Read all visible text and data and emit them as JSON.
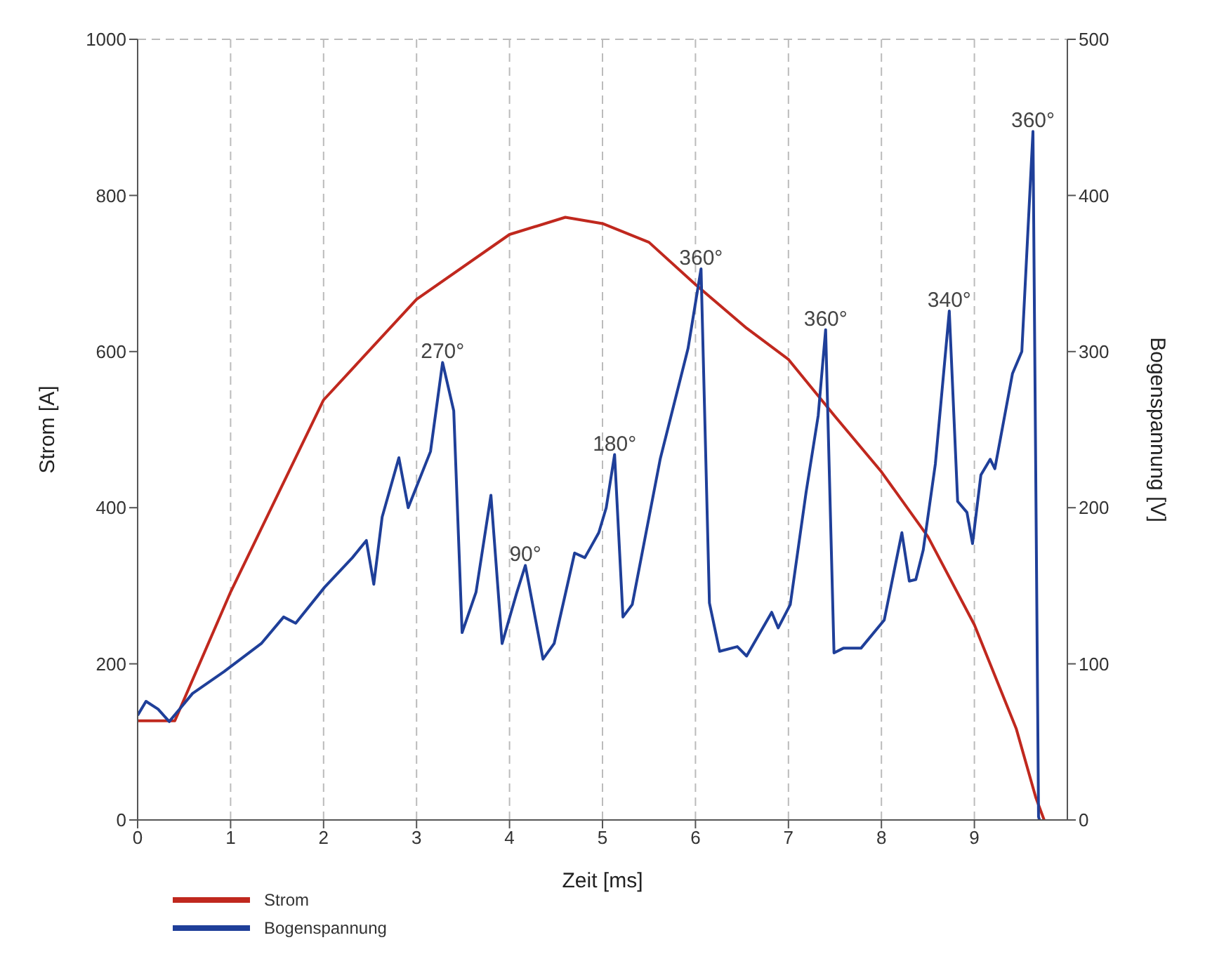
{
  "chart_data": {
    "type": "line",
    "xlabel": "Zeit [ms]",
    "ylabel": "Strom [A]",
    "y2label": "Bogenspannung [V]",
    "xlim": [
      0,
      10
    ],
    "xticks": [
      0,
      1,
      2,
      3,
      4,
      5,
      6,
      7,
      8,
      9
    ],
    "ylim": [
      0,
      1000
    ],
    "yticks": [
      0,
      200,
      400,
      600,
      800,
      1000
    ],
    "y2lim": [
      0,
      500
    ],
    "y2ticks": [
      0,
      100,
      200,
      300,
      400,
      500
    ],
    "grid": true,
    "legend": "bottom left",
    "line_style": "solid",
    "marker": "none",
    "series": [
      {
        "name": "Strom",
        "color": "#c0281e",
        "x": [
          0,
          0.4,
          1,
          2,
          3,
          4,
          4.6,
          5,
          5.5,
          6,
          6.55,
          7,
          7.5,
          8,
          8.5,
          9,
          9.45,
          9.66,
          9.75
        ],
        "values": [
          127,
          127,
          292,
          538,
          667,
          750,
          772,
          764,
          740,
          686,
          630,
          590,
          517,
          446,
          363,
          250,
          117,
          29,
          0
        ]
      },
      {
        "name": "Bogenspannung",
        "color": "#1f3f99",
        "axis": "y2",
        "x": [
          0,
          0.09,
          0.22,
          0.34,
          0.59,
          0.93,
          1.33,
          1.57,
          1.7,
          2.01,
          2.31,
          2.46,
          2.54,
          2.63,
          2.81,
          2.91,
          3.15,
          3.28,
          3.4,
          3.49,
          3.64,
          3.8,
          3.92,
          4.08,
          4.17,
          4.36,
          4.48,
          4.7,
          4.81,
          4.96,
          5.04,
          5.13,
          5.22,
          5.32,
          5.62,
          5.92,
          6.06,
          6.15,
          6.26,
          6.45,
          6.55,
          6.82,
          6.89,
          7.02,
          7.19,
          7.32,
          7.4,
          7.49,
          7.59,
          7.78,
          8.03,
          8.22,
          8.3,
          8.37,
          8.45,
          8.58,
          8.73,
          8.82,
          8.92,
          8.98,
          9.07,
          9.17,
          9.22,
          9.41,
          9.51,
          9.63,
          9.69,
          9.7
        ],
        "values": [
          67,
          76,
          71,
          63,
          81,
          95,
          113,
          130,
          126,
          149,
          168,
          179,
          151,
          194,
          232,
          200,
          236,
          293,
          262,
          120,
          146,
          208,
          113,
          146,
          163,
          103,
          113,
          171,
          168,
          184,
          200,
          234,
          130,
          138,
          231,
          302,
          353,
          139,
          108,
          111,
          105,
          133,
          123,
          138,
          210,
          259,
          314,
          107,
          110,
          110,
          128,
          184,
          153,
          154,
          173,
          228,
          326,
          204,
          197,
          177,
          221,
          231,
          225,
          286,
          300,
          441,
          2,
          0
        ]
      }
    ],
    "annotations": [
      {
        "text": "270°",
        "x": 3.28,
        "y": 586
      },
      {
        "text": "90°",
        "x": 4.17,
        "y": 326
      },
      {
        "text": "180°",
        "x": 5.13,
        "y": 468
      },
      {
        "text": "360°",
        "x": 6.06,
        "y": 706
      },
      {
        "text": "360°",
        "x": 7.4,
        "y": 628
      },
      {
        "text": "340°",
        "x": 8.73,
        "y": 652
      },
      {
        "text": "360°",
        "x": 9.63,
        "y": 882
      }
    ]
  }
}
